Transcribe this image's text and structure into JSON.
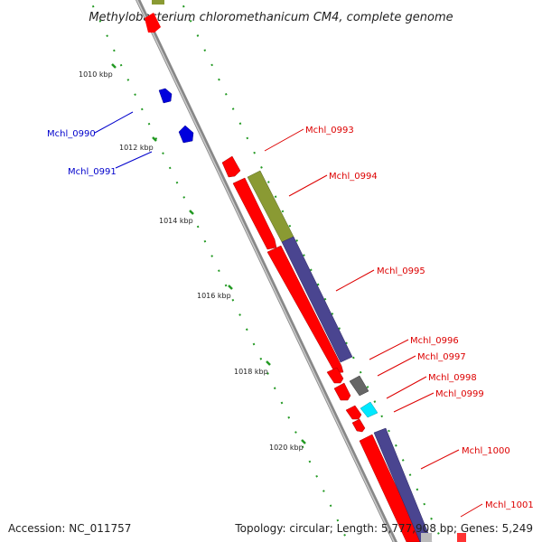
{
  "title": "Methylobacterium chloromethanicum CM4, complete genome",
  "accession": "Accession: NC_011757",
  "summary": "Topology: circular; Length: 5,777,908 bp; Genes: 5,249",
  "ticks": [
    "1010 kbp",
    "1012 kbp",
    "1014 kbp",
    "1016 kbp",
    "1018 kbp",
    "1020 kbp"
  ],
  "genes_left": [
    "Mchl_0990",
    "Mchl_0991"
  ],
  "genes_right": [
    "Mchl_0993",
    "Mchl_0994",
    "Mchl_0995",
    "Mchl_0996",
    "Mchl_0997",
    "Mchl_0998",
    "Mchl_0999",
    "Mchl_1000",
    "Mchl_1001"
  ],
  "colors": {
    "red": "#ff0000",
    "blue": "#0000dd",
    "olive": "#8a9a33",
    "purple": "#4a4590",
    "cyan": "#00e8ff",
    "grey": "#666666",
    "backbone": "#999999",
    "tick": "#229922",
    "leader_red": "#dd0000",
    "leader_blue": "#0000cc"
  }
}
